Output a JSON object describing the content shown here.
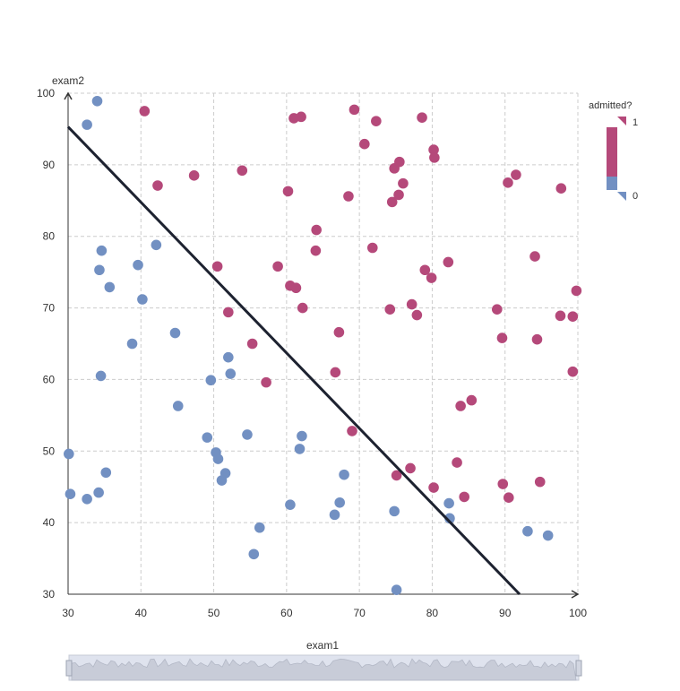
{
  "chart_data": {
    "type": "scatter",
    "title": "",
    "xlabel": "exam1",
    "ylabel": "exam2",
    "xlim": [
      30,
      100
    ],
    "ylim": [
      30,
      100
    ],
    "x_ticks": [
      "30",
      "40",
      "50",
      "60",
      "70",
      "80",
      "90",
      "100"
    ],
    "y_ticks": [
      "30",
      "40",
      "50",
      "60",
      "70",
      "80",
      "90",
      "100"
    ],
    "grid": true,
    "legend": {
      "title": "admitted?",
      "max_label": "1",
      "min_label": "0",
      "placement": "right"
    },
    "colors": {
      "admitted": "#b5497a",
      "not_admitted": "#7290c2",
      "boundary": "#1d2230",
      "axis": "#333333",
      "grid": "#cccccc",
      "slider": "#dfe3ee"
    },
    "boundary_line": {
      "x": [
        30,
        92
      ],
      "y": [
        95.3,
        30
      ]
    },
    "series": [
      {
        "label": "1",
        "points": [
          [
            40.5,
            97.5
          ],
          [
            42.3,
            87.1
          ],
          [
            47.3,
            88.5
          ],
          [
            50.5,
            75.8
          ],
          [
            52,
            69.4
          ],
          [
            55.3,
            65
          ],
          [
            53.9,
            89.2
          ],
          [
            57.2,
            59.6
          ],
          [
            58.8,
            75.8
          ],
          [
            60.2,
            86.3
          ],
          [
            60.5,
            73.1
          ],
          [
            61.3,
            72.8
          ],
          [
            61,
            96.5
          ],
          [
            62,
            96.7
          ],
          [
            62.2,
            70
          ],
          [
            64,
            78
          ],
          [
            64.1,
            80.9
          ],
          [
            66.7,
            61
          ],
          [
            67.2,
            66.6
          ],
          [
            68.5,
            85.6
          ],
          [
            69,
            52.8
          ],
          [
            69.3,
            97.7
          ],
          [
            70.7,
            92.9
          ],
          [
            71.8,
            78.4
          ],
          [
            72.3,
            96.1
          ],
          [
            74.2,
            69.8
          ],
          [
            74.5,
            84.8
          ],
          [
            74.8,
            89.5
          ],
          [
            75.1,
            46.6
          ],
          [
            75.4,
            85.8
          ],
          [
            75.5,
            90.4
          ],
          [
            76,
            87.4
          ],
          [
            77,
            47.6
          ],
          [
            77.2,
            70.5
          ],
          [
            77.9,
            69
          ],
          [
            78.6,
            96.6
          ],
          [
            79,
            75.3
          ],
          [
            79.9,
            74.2
          ],
          [
            80.2,
            92.1
          ],
          [
            80.3,
            91
          ],
          [
            80.2,
            44.9
          ],
          [
            82.2,
            76.4
          ],
          [
            83.4,
            48.4
          ],
          [
            83.9,
            56.3
          ],
          [
            84.4,
            43.6
          ],
          [
            85.4,
            57.1
          ],
          [
            88.9,
            69.8
          ],
          [
            89.6,
            65.8
          ],
          [
            89.7,
            45.4
          ],
          [
            90.4,
            87.5
          ],
          [
            90.5,
            43.5
          ],
          [
            91.5,
            88.6
          ],
          [
            94.1,
            77.2
          ],
          [
            94.4,
            65.6
          ],
          [
            94.8,
            45.7
          ],
          [
            97.6,
            68.9
          ],
          [
            97.7,
            86.7
          ],
          [
            99.3,
            68.8
          ],
          [
            99.3,
            61.1
          ],
          [
            99.8,
            72.4
          ]
        ]
      },
      {
        "label": "0",
        "points": [
          [
            34,
            98.9
          ],
          [
            32.6,
            95.6
          ],
          [
            30.1,
            49.6
          ],
          [
            30.3,
            44
          ],
          [
            32.6,
            43.3
          ],
          [
            34.2,
            44.2
          ],
          [
            34.5,
            60.5
          ],
          [
            34.3,
            75.3
          ],
          [
            34.6,
            78
          ],
          [
            35.2,
            47
          ],
          [
            35.7,
            72.9
          ],
          [
            38.8,
            65
          ],
          [
            39.6,
            76
          ],
          [
            40.2,
            71.2
          ],
          [
            42.1,
            78.8
          ],
          [
            44.7,
            66.5
          ],
          [
            45.1,
            56.3
          ],
          [
            49.1,
            51.9
          ],
          [
            49.6,
            59.9
          ],
          [
            50.3,
            49.8
          ],
          [
            50.6,
            48.9
          ],
          [
            51.1,
            45.9
          ],
          [
            51.6,
            46.9
          ],
          [
            52,
            63.1
          ],
          [
            52.3,
            60.8
          ],
          [
            54.6,
            52.3
          ],
          [
            55.5,
            35.6
          ],
          [
            56.3,
            39.3
          ],
          [
            60.5,
            42.5
          ],
          [
            61.8,
            50.3
          ],
          [
            62.1,
            52.1
          ],
          [
            66.6,
            41.1
          ],
          [
            67.3,
            42.8
          ],
          [
            67.9,
            46.7
          ],
          [
            74.8,
            41.6
          ],
          [
            75.1,
            30.6
          ],
          [
            82.3,
            42.7
          ],
          [
            82.4,
            40.6
          ],
          [
            93.1,
            38.8
          ],
          [
            95.9,
            38.2
          ]
        ]
      }
    ]
  }
}
